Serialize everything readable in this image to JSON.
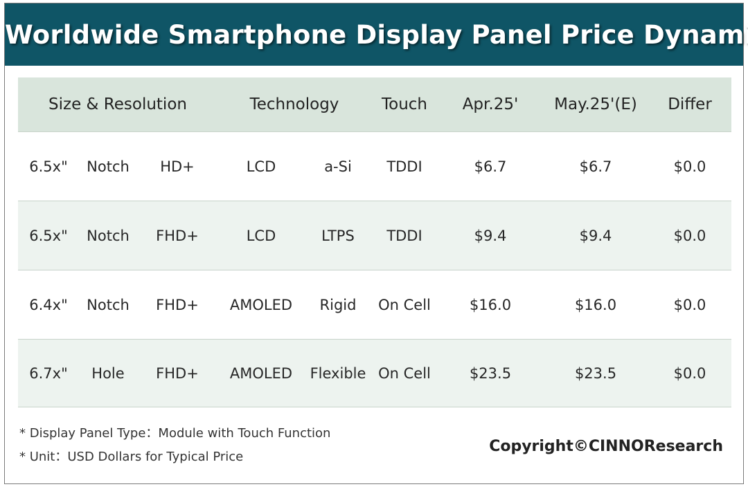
{
  "title": "Worldwide Smartphone Display Panel Price Dynamic",
  "chart_data": {
    "type": "table",
    "headers": [
      "Size & Resolution",
      "Technology",
      "Touch",
      "Apr.25'",
      "May.25'(E)",
      "Differ"
    ],
    "rows": [
      [
        "6.5x\"",
        "Notch",
        "HD+",
        "LCD",
        "a-Si",
        "TDDI",
        "$6.7",
        "$6.7",
        "$0.0"
      ],
      [
        "6.5x\"",
        "Notch",
        "FHD+",
        "LCD",
        "LTPS",
        "TDDI",
        "$9.4",
        "$9.4",
        "$0.0"
      ],
      [
        "6.4x\"",
        "Notch",
        "FHD+",
        "AMOLED",
        "Rigid",
        "On Cell",
        "$16.0",
        "$16.0",
        "$0.0"
      ],
      [
        "6.7x\"",
        "Hole",
        "FHD+",
        "AMOLED",
        "Flexible",
        "On Cell",
        "$23.5",
        "$23.5",
        "$0.0"
      ]
    ],
    "values": [
      {
        "apr25": 6.7,
        "may25e": 6.7,
        "differ": 0.0
      },
      {
        "apr25": 9.4,
        "may25e": 9.4,
        "differ": 0.0
      },
      {
        "apr25": 16.0,
        "may25e": 16.0,
        "differ": 0.0
      },
      {
        "apr25": 23.5,
        "may25e": 23.5,
        "differ": 0.0
      }
    ]
  },
  "notes": [
    "* Display Panel Type：Module with Touch Function",
    "* Unit：USD Dollars for Typical Price"
  ],
  "copyright": "Copyright©CINNOResearch",
  "colors": {
    "banner": "#0f5566",
    "header_row": "#d9e5dc",
    "alt_row": "#edf3ef"
  }
}
